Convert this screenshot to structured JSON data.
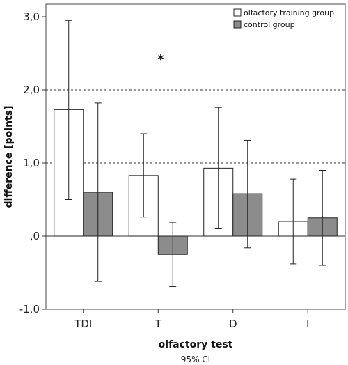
{
  "chart_data": {
    "type": "bar",
    "categories": [
      "TDI",
      "T",
      "D",
      "I"
    ],
    "series": [
      {
        "name": "olfactory training group",
        "color": "#ffffff",
        "values": [
          1.73,
          0.83,
          0.93,
          0.2
        ],
        "ci_low": [
          0.5,
          0.26,
          0.1,
          -0.38
        ],
        "ci_high": [
          2.95,
          1.4,
          1.76,
          0.78
        ]
      },
      {
        "name": "control group",
        "color": "#8c8c8c",
        "values": [
          0.6,
          -0.25,
          0.58,
          0.25
        ],
        "ci_low": [
          -0.62,
          -0.69,
          -0.16,
          -0.4
        ],
        "ci_high": [
          1.82,
          0.19,
          1.31,
          0.9
        ]
      }
    ],
    "ylim": [
      -1.0,
      3.0
    ],
    "yticks": [
      "-1,0",
      ",0",
      "1,0",
      "2,0",
      "3,0"
    ],
    "ytick_values": [
      -1.0,
      0.0,
      1.0,
      2.0,
      3.0
    ],
    "reference_lines": [
      1.0,
      2.0
    ],
    "xlabel": "olfactory test",
    "ylabel": "difference [points]",
    "subtitle": "95% CI",
    "annotation": "*",
    "legend_position": "top-right",
    "grid": false
  }
}
